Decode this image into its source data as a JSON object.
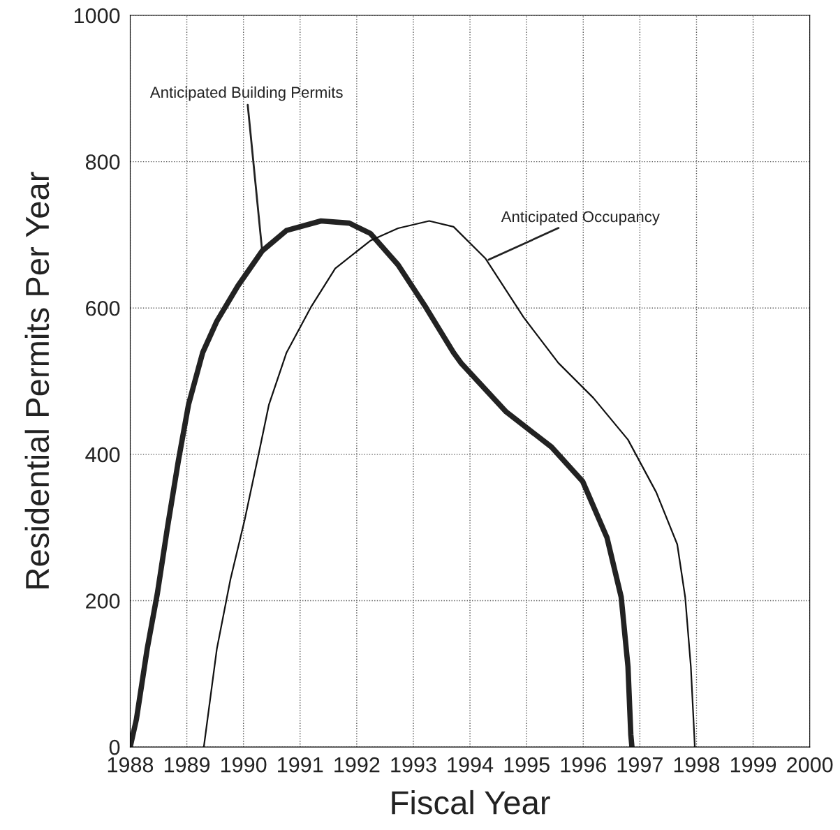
{
  "chart_data": {
    "type": "line",
    "xlabel": "Fiscal Year",
    "ylabel": "Residential Permits Per Year",
    "xlim": [
      1988,
      2000
    ],
    "xticks": [
      1988,
      1989,
      1990,
      1991,
      1992,
      1993,
      1994,
      1995,
      1996,
      1997,
      1998,
      1999,
      2000
    ],
    "ylim": [
      0,
      1000
    ],
    "yticks": [
      0,
      200,
      400,
      600,
      800,
      1000
    ],
    "grid": true,
    "marker": "none",
    "line_style": "solid",
    "series": [
      {
        "color": "#222222",
        "x": [
          1988,
          1988.11,
          1988.3,
          1988.48,
          1988.66,
          1988.85,
          1989.03,
          1989.28,
          1989.53,
          1989.9,
          1990.33,
          1990.76,
          1991.37,
          1991.87,
          1992.24,
          1992.73,
          1993.22,
          1993.71,
          1993.84,
          1994.64,
          1995.44,
          1995.99,
          1996.42,
          1996.67,
          1996.79,
          1996.84,
          1996.86
        ],
        "values": [
          0,
          38,
          134,
          210,
          301,
          391,
          468,
          539,
          582,
          630,
          678,
          706,
          719,
          716,
          702,
          659,
          601,
          539,
          525,
          458,
          410,
          363,
          286,
          205,
          110,
          17,
          0
        ]
      },
      {
        "color": "#111111",
        "x": [
          1989.3,
          1989.53,
          1989.77,
          1990.02,
          1990.27,
          1990.45,
          1990.76,
          1991.19,
          1991.62,
          1992.24,
          1992.73,
          1993.28,
          1993.71,
          1994.27,
          1994.95,
          1995.56,
          1996.18,
          1996.79,
          1997.29,
          1997.66,
          1997.8,
          1997.9,
          1997.96,
          1997.97
        ],
        "values": [
          0,
          134,
          229,
          310,
          401,
          468,
          539,
          601,
          654,
          692,
          709,
          719,
          711,
          668,
          587,
          525,
          477,
          420,
          348,
          277,
          205,
          110,
          17,
          0
        ]
      }
    ],
    "annotations": [
      {
        "text": "Anticipated Building Permits",
        "x": 1990.33,
        "y": 678
      },
      {
        "text": "Anticipated Occupancy",
        "x": 1994.33,
        "y": 666
      }
    ]
  }
}
